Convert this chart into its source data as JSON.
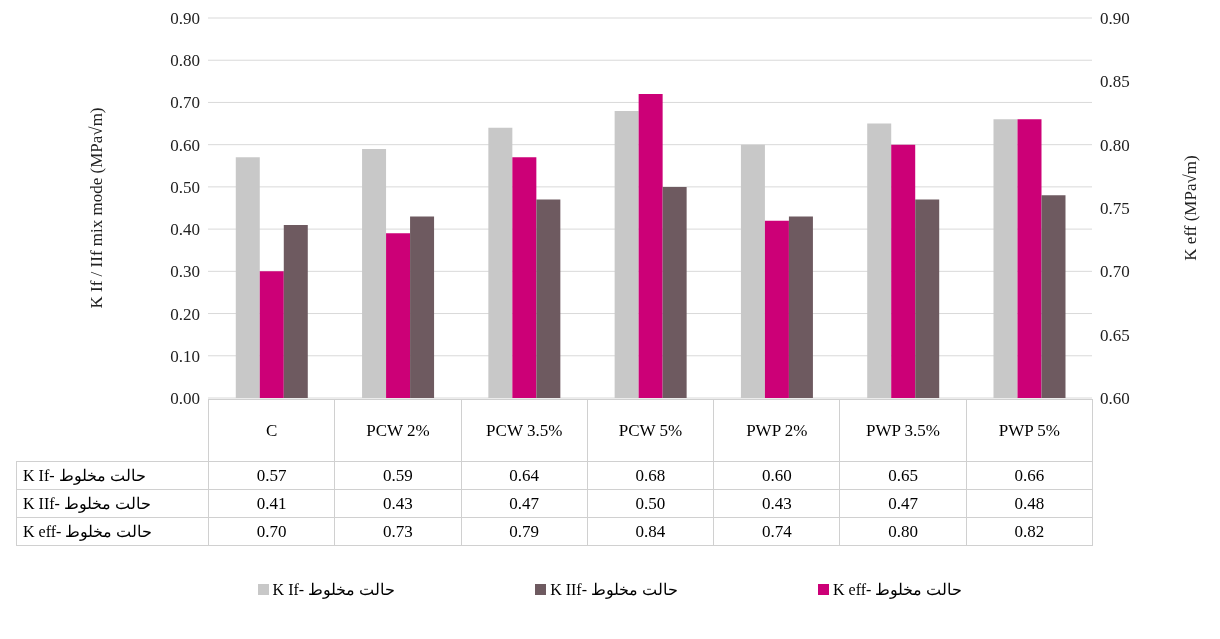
{
  "chart_data": {
    "type": "bar",
    "ylabel": "K If / IIf mix mode (MPa√m)",
    "y2label": "K eff (MPa√m)",
    "categories": [
      "C",
      "PCW 2%",
      "PCW 3.5%",
      "PCW 5%",
      "PWP 2%",
      "PWP 3.5%",
      "PWP 5%"
    ],
    "series": [
      {
        "name": "K If- حالت مخلوط",
        "color": "#c8c8c8",
        "values": [
          0.57,
          0.59,
          0.64,
          0.68,
          0.6,
          0.65,
          0.66
        ],
        "value_labels": [
          "0.57",
          "0.59",
          "0.64",
          "0.68",
          "0.60",
          "0.65",
          "0.66"
        ]
      },
      {
        "name": "K IIf- حالت مخلوط",
        "color": "#6e5a60",
        "values": [
          0.41,
          0.43,
          0.47,
          0.5,
          0.43,
          0.47,
          0.48
        ],
        "value_labels": [
          "0.41",
          "0.43",
          "0.47",
          "0.50",
          "0.43",
          "0.47",
          "0.48"
        ]
      },
      {
        "name": "K eff- حالت مخلوط",
        "color": "#cc0077",
        "axis": "y2",
        "values": [
          0.7,
          0.73,
          0.79,
          0.84,
          0.74,
          0.8,
          0.82
        ],
        "value_labels": [
          "0.70",
          "0.73",
          "0.79",
          "0.84",
          "0.74",
          "0.80",
          "0.82"
        ]
      }
    ],
    "ylim": [
      0,
      0.9
    ],
    "yticks": [
      {
        "value": 0,
        "label": "0.00"
      },
      {
        "value": 0.1,
        "label": "0.10"
      },
      {
        "value": 0.2,
        "label": "0.20"
      },
      {
        "value": 0.3,
        "label": "0.30"
      },
      {
        "value": 0.4,
        "label": "0.40"
      },
      {
        "value": 0.5,
        "label": "0.50"
      },
      {
        "value": 0.6,
        "label": "0.60"
      },
      {
        "value": 0.7,
        "label": "0.70"
      },
      {
        "value": 0.8,
        "label": "0.80"
      },
      {
        "value": 0.9,
        "label": "0.90"
      }
    ],
    "y2lim": [
      0.6,
      0.9
    ],
    "y2ticks": [
      {
        "value": 0.6,
        "label": "0.60"
      },
      {
        "value": 0.65,
        "label": "0.65"
      },
      {
        "value": 0.7,
        "label": "0.70"
      },
      {
        "value": 0.75,
        "label": "0.75"
      },
      {
        "value": 0.8,
        "label": "0.80"
      },
      {
        "value": 0.85,
        "label": "0.85"
      },
      {
        "value": 0.9,
        "label": "0.90"
      }
    ],
    "grid": "y",
    "legend": "bottom"
  }
}
